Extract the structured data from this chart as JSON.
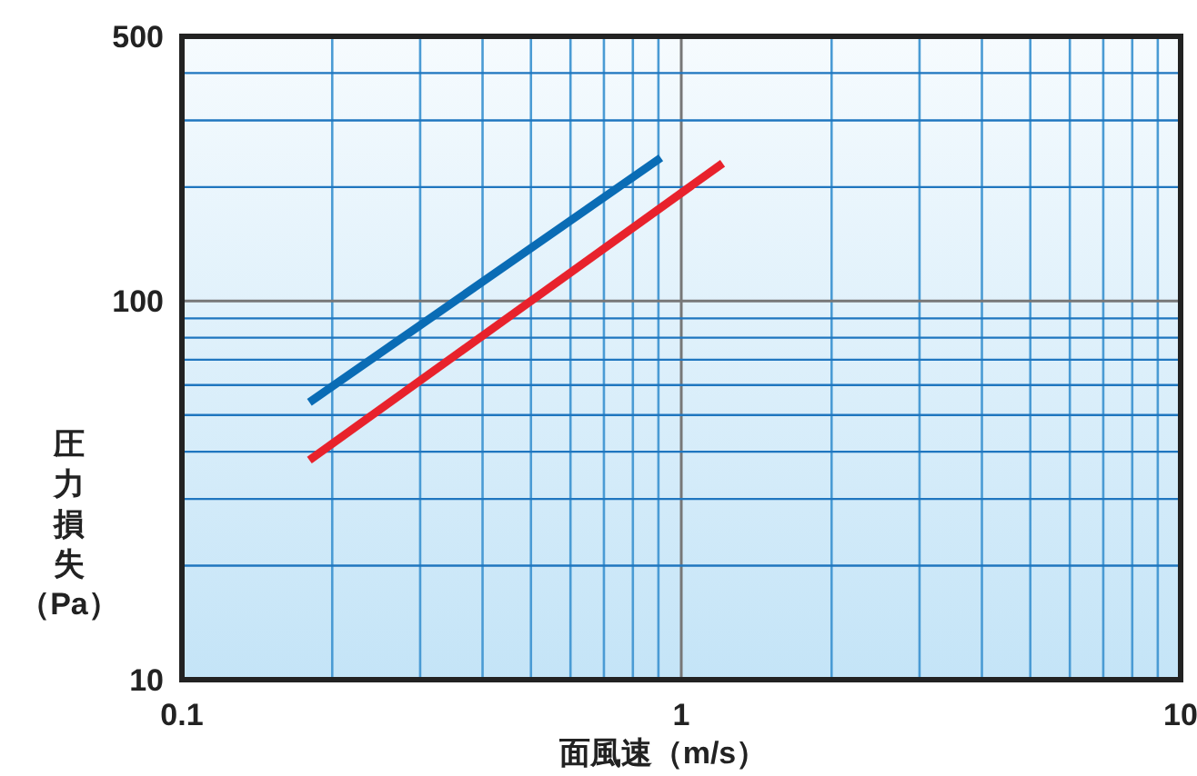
{
  "chart_data": {
    "type": "line",
    "xlabel": "面風速（m/s）",
    "ylabel": "圧力損失（Pa）",
    "log": "xy",
    "grid": true,
    "xlim": [
      0.1,
      10
    ],
    "ylim": [
      10,
      500
    ],
    "xticks": [
      0.1,
      {
        "value": 0.2,
        "label": null
      },
      {
        "value": 0.3,
        "label": null
      },
      {
        "value": 0.4,
        "label": null
      },
      {
        "value": 0.5,
        "label": null
      },
      {
        "value": 0.6,
        "label": null
      },
      {
        "value": 0.7,
        "label": null
      },
      {
        "value": 0.8,
        "label": null
      },
      {
        "value": 0.9,
        "label": null
      },
      1,
      {
        "value": 2,
        "label": null
      },
      {
        "value": 3,
        "label": null
      },
      {
        "value": 4,
        "label": null
      },
      {
        "value": 5,
        "label": null
      },
      {
        "value": 6,
        "label": null
      },
      {
        "value": 7,
        "label": null
      },
      {
        "value": 8,
        "label": null
      },
      {
        "value": 9,
        "label": null
      },
      10
    ],
    "yticks": [
      10,
      {
        "value": 20,
        "label": null
      },
      {
        "value": 30,
        "label": null
      },
      {
        "value": 40,
        "label": null
      },
      {
        "value": 50,
        "label": null
      },
      {
        "value": 60,
        "label": null
      },
      {
        "value": 70,
        "label": null
      },
      {
        "value": 80,
        "label": null
      },
      {
        "value": 90,
        "label": null
      },
      100,
      {
        "value": 200,
        "label": null
      },
      {
        "value": 300,
        "label": null
      },
      {
        "value": 400,
        "label": null
      },
      500
    ],
    "series": [
      {
        "color": "#0a6cb5",
        "x": [
          0.18,
          0.91
        ],
        "values": [
          54,
          239
        ]
      },
      {
        "color": "#e8222c",
        "x": [
          0.18,
          1.21
        ],
        "values": [
          38,
          231
        ]
      }
    ]
  }
}
